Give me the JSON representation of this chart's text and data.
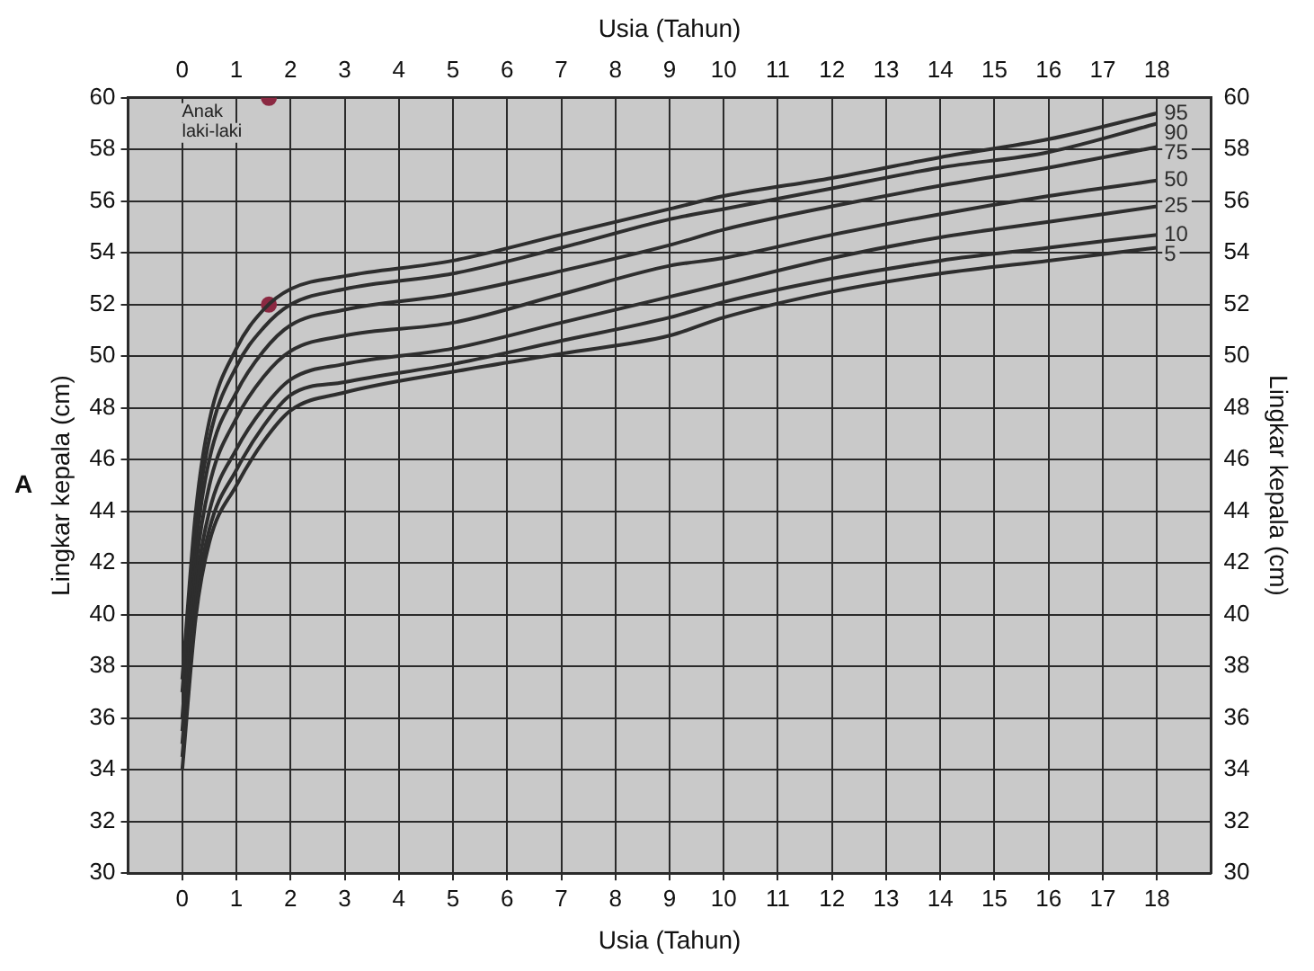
{
  "chart_data": {
    "type": "line",
    "xlabel": "Usia (Tahun)",
    "x2label": "Usia (Tahun)",
    "ylabel": "Lingkar kepala (cm)",
    "y2label": "Lingkar kepala (cm)",
    "annotations": [
      "A",
      "Anak laki-laki"
    ],
    "x": [
      0,
      0.25,
      0.5,
      1,
      1.5,
      2,
      3,
      5,
      7,
      9,
      10,
      12,
      14,
      16,
      18
    ],
    "xlim": [
      -1,
      19
    ],
    "xticks": [
      0,
      1,
      2,
      3,
      4,
      5,
      6,
      7,
      8,
      9,
      10,
      11,
      12,
      13,
      14,
      15,
      16,
      17,
      18
    ],
    "x2lim": [
      -1,
      19
    ],
    "x2ticks": [
      0,
      1,
      2,
      3,
      4,
      5,
      6,
      7,
      8,
      9,
      10,
      11,
      12,
      13,
      14,
      15,
      16,
      17,
      18
    ],
    "ylim": [
      30,
      60
    ],
    "yticks": [
      30,
      32,
      34,
      36,
      38,
      40,
      42,
      44,
      46,
      48,
      50,
      52,
      54,
      56,
      58,
      60
    ],
    "y2lim": [
      30,
      60
    ],
    "y2ticks": [
      30,
      32,
      34,
      36,
      38,
      40,
      42,
      44,
      46,
      48,
      50,
      52,
      54,
      56,
      58,
      60
    ],
    "grid": true,
    "legend": false,
    "marker": "none",
    "line_style": "solid",
    "series": [
      {
        "name": "95",
        "color": "#2e2e2e",
        "values": [
          37.5,
          44.0,
          47.5,
          50.3,
          51.8,
          52.6,
          53.1,
          53.7,
          54.7,
          55.7,
          56.2,
          56.9,
          57.7,
          58.4,
          59.4
        ]
      },
      {
        "name": "90",
        "color": "#2e2e2e",
        "values": [
          37,
          43.3,
          46.8,
          49.6,
          51.1,
          52.0,
          52.6,
          53.2,
          54.2,
          55.3,
          55.7,
          56.5,
          57.3,
          57.9,
          59.0
        ]
      },
      {
        "name": "75",
        "color": "#2e2e2e",
        "values": [
          36,
          42.6,
          46.0,
          48.6,
          50.2,
          51.2,
          51.8,
          52.4,
          53.3,
          54.3,
          54.9,
          55.8,
          56.6,
          57.3,
          58.1
        ]
      },
      {
        "name": "50",
        "color": "#2e2e2e",
        "values": [
          35.5,
          41.8,
          45.0,
          47.6,
          49.2,
          50.2,
          50.8,
          51.3,
          52.4,
          53.5,
          53.8,
          54.7,
          55.5,
          56.2,
          56.8
        ]
      },
      {
        "name": "25",
        "color": "#2e2e2e",
        "values": [
          35,
          41.0,
          44.0,
          46.4,
          48.0,
          49.1,
          49.7,
          50.3,
          51.3,
          52.3,
          52.8,
          53.8,
          54.6,
          55.2,
          55.8
        ]
      },
      {
        "name": "10",
        "color": "#2e2e2e",
        "values": [
          34.5,
          40.4,
          43.3,
          45.6,
          47.3,
          48.5,
          49.0,
          49.7,
          50.6,
          51.5,
          52.1,
          53.0,
          53.7,
          54.2,
          54.7
        ]
      },
      {
        "name": "5",
        "color": "#2e2e2e",
        "values": [
          34,
          39.9,
          42.8,
          45.0,
          46.7,
          47.9,
          48.6,
          49.4,
          50.1,
          50.8,
          51.5,
          52.5,
          53.2,
          53.7,
          54.2
        ]
      },
      {
        "type": "scatter",
        "marker": "circle",
        "color": "#8b2942",
        "x": [
          1.6,
          1.6
        ],
        "values": [
          60,
          52
        ]
      }
    ]
  }
}
